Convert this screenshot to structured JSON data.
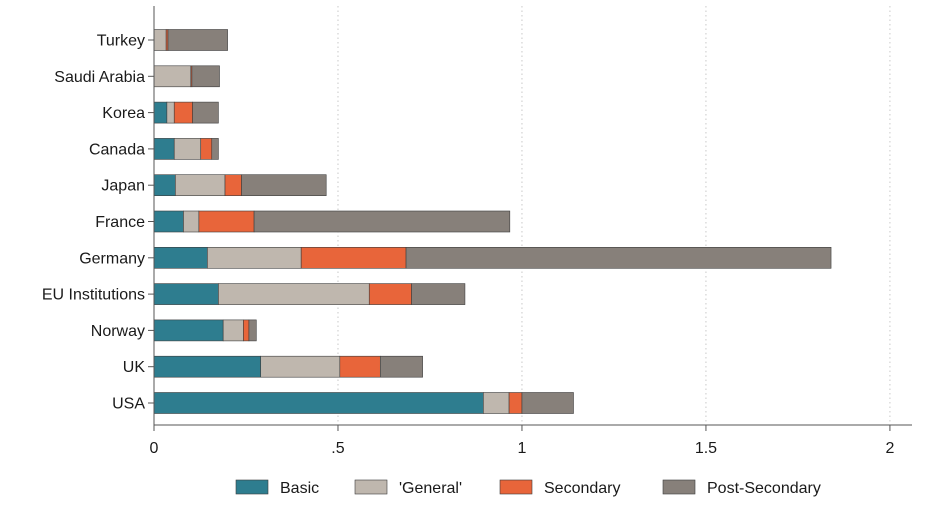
{
  "chart_data": {
    "type": "bar",
    "orientation": "horizontal",
    "stacked": true,
    "categories": [
      "Turkey",
      "Saudi Arabia",
      "Korea",
      "Canada",
      "Japan",
      "France",
      "Germany",
      "EU Institutions",
      "Norway",
      "UK",
      "USA"
    ],
    "series": [
      {
        "name": "Basic",
        "color": "#2e7d8f",
        "values": [
          0.0,
          0.0,
          0.035,
          0.055,
          0.058,
          0.08,
          0.145,
          0.175,
          0.188,
          0.29,
          0.895
        ]
      },
      {
        "name": "'General'",
        "color": "#bfb7ae",
        "values": [
          0.033,
          0.1,
          0.02,
          0.072,
          0.135,
          0.042,
          0.255,
          0.41,
          0.055,
          0.215,
          0.07
        ]
      },
      {
        "name": "Secondary",
        "color": "#e8653a",
        "values": [
          0.005,
          0.003,
          0.05,
          0.03,
          0.045,
          0.15,
          0.285,
          0.115,
          0.015,
          0.11,
          0.035
        ]
      },
      {
        "name": "Post-Secondary",
        "color": "#87807a",
        "values": [
          0.162,
          0.075,
          0.07,
          0.018,
          0.23,
          0.695,
          1.155,
          0.145,
          0.02,
          0.115,
          0.14
        ]
      }
    ],
    "x_ticks": [
      "0",
      ".5",
      "1",
      "1.5",
      "2"
    ],
    "x_tick_values": [
      0,
      0.5,
      1,
      1.5,
      2
    ],
    "xlim": [
      0,
      2.06
    ],
    "grid": "vertical-dotted",
    "legend_position": "bottom"
  }
}
